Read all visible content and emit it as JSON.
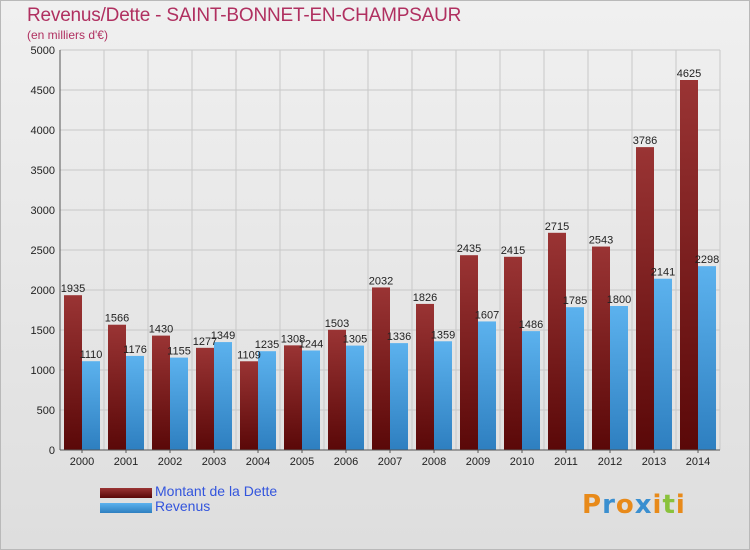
{
  "header": {
    "title": "Revenus/Dette - SAINT-BONNET-EN-CHAMPSAUR",
    "subtitle": "(en milliers d'€)"
  },
  "logo": {
    "letters": [
      "P",
      "r",
      "o",
      "x",
      "i",
      "t",
      "i"
    ],
    "colors": [
      "#e88a1a",
      "#3a8fd0",
      "#e88a1a",
      "#3a8fd0",
      "#e88a1a",
      "#8ac23c",
      "#e88a1a"
    ]
  },
  "legend": {
    "debt_label": "Montant de la Dette",
    "revenue_label": "Revenus"
  },
  "colors": {
    "debt_top": "#9a3434",
    "debt_bottom": "#5a0808",
    "revenue_top": "#5cb2ee",
    "revenue_bottom": "#2e7fc0",
    "grid": "#c8c8c8"
  },
  "chart_data": {
    "type": "bar",
    "categories": [
      "2000",
      "2001",
      "2002",
      "2003",
      "2004",
      "2005",
      "2006",
      "2007",
      "2008",
      "2009",
      "2010",
      "2011",
      "2012",
      "2013",
      "2014"
    ],
    "series": [
      {
        "name": "Montant de la Dette",
        "values": [
          1935,
          1566,
          1430,
          1277,
          1109,
          1308,
          1503,
          2032,
          1826,
          2435,
          2415,
          2715,
          2543,
          3786,
          4625
        ]
      },
      {
        "name": "Revenus",
        "values": [
          1110,
          1176,
          1155,
          1349,
          1235,
          1244,
          1305,
          1336,
          1359,
          1607,
          1486,
          1785,
          1800,
          2141,
          2298
        ]
      }
    ],
    "ylim": [
      0,
      5000
    ],
    "yticks": [
      0,
      500,
      1000,
      1500,
      2000,
      2500,
      3000,
      3500,
      4000,
      4500,
      5000
    ],
    "grid": true,
    "legend_position": "bottom-left"
  }
}
